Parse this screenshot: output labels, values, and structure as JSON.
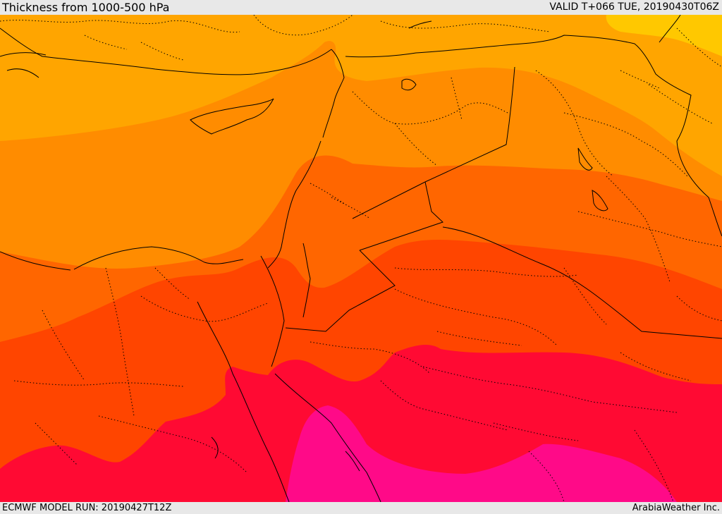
{
  "header": {
    "title": "Thickness from 1000-500 hPa",
    "valid": "VALID T+066 TUE, 20190430T06Z"
  },
  "footer": {
    "model_run": "ECMWF MODEL RUN: 20190427T12Z",
    "credit": "ArabiaWeather Inc."
  },
  "map": {
    "bands": [
      {
        "name": "band-1",
        "color": "#ffa500"
      },
      {
        "name": "band-2",
        "color": "#ff8c00"
      },
      {
        "name": "band-3",
        "color": "#ff6600"
      },
      {
        "name": "band-4",
        "color": "#ff4500"
      },
      {
        "name": "band-5",
        "color": "#ff0a33"
      },
      {
        "name": "band-6",
        "color": "#ff0a88"
      }
    ],
    "highlight_color": "#ffc800",
    "border_color": "#000000"
  }
}
